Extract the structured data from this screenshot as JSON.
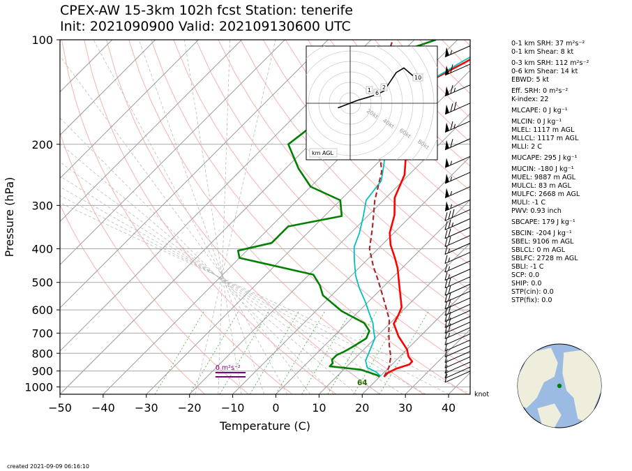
{
  "title_line1": "CPEX-AW 15-3km  102h fcst  Station: tenerife",
  "title_line2": "Init: 2021090900  Valid: 2021091306 00 UTC",
  "xlabel": "Temperature (C)",
  "ylabel": "Pressure (hPa)",
  "created": "created 2021-09-09 06:16:10",
  "wind_unit_label": "knot",
  "hodograph": {
    "box_label": "km AGL",
    "ring_labels": [
      "20kt",
      "40kt",
      "60kt",
      "80kt"
    ],
    "height_markers": [
      "1",
      "2",
      "6",
      "10"
    ],
    "trace_kt": [
      [
        -8,
        -3
      ],
      [
        5,
        2
      ],
      [
        12,
        4
      ],
      [
        18,
        6
      ],
      [
        22,
        8
      ],
      [
        26,
        14
      ],
      [
        30,
        20
      ],
      [
        35,
        23
      ],
      [
        42,
        17
      ]
    ]
  },
  "srh_annotation": "0 m²s⁻²",
  "lfc_annotation": "64",
  "parameters": [
    "0-1 km SRH: 37 m²s⁻²",
    "0-1 km Shear: 8 kt",
    "0-3 km SRH: 112 m²s⁻²",
    "0-6 km Shear: 14 kt",
    "EBWD: 5 kt",
    "Eff. SRH: 0 m²s⁻²",
    "K-index: 22",
    "MLCAPE: 0 J kg⁻¹",
    "MLCIN: 0 J kg⁻¹",
    "MLEL: 1117 m AGL",
    "MLLCL: 1117 m AGL",
    "MLLI: 2 C",
    "MUCAPE: 295 J kg⁻¹",
    "MUCIN: -180 J kg⁻¹",
    "MUEL: 9887 m AGL",
    "MULCL: 83 m AGL",
    "MULFC: 2668 m AGL",
    "MULI: -1 C",
    "PWV: 0.93 inch",
    "SBCAPE: 179 J kg⁻¹",
    "SBCIN: -204 J kg⁻¹",
    "SBEL: 9106 m AGL",
    "SBLCL: 0 m AGL",
    "SBLFC: 2728 m AGL",
    "SBLI: -1 C",
    "SCP: 0.0",
    "SHIP: 0.0",
    "STP(cin): 0.0",
    "STP(fix): 0.0"
  ],
  "colors": {
    "temperature": "#ff0000",
    "dewpoint": "#008000",
    "virtual_temperature": "#00bfbf",
    "parcel": "#a52a2a",
    "srh_marker": "#800080",
    "dry_adiabat": "#f4a6a6",
    "moist_adiabat": "#bbbbbb",
    "mixing_ratio": "#5cb85c",
    "globe_ocean": "#9bbbe3",
    "globe_land": "#efeedd",
    "station_marker": "#008000"
  },
  "chart_data": {
    "type": "line",
    "title": "CPEX-AW 15-3km  102h fcst  Station: tenerife",
    "xlabel": "Temperature (C)",
    "ylabel": "Pressure (hPa)",
    "xlim": [
      -50,
      45
    ],
    "ylim": [
      1050,
      100
    ],
    "y_scale": "log",
    "x_ticks": [
      -50,
      -40,
      -30,
      -20,
      -10,
      0,
      10,
      20,
      30,
      40
    ],
    "y_ticks": [
      100,
      200,
      300,
      400,
      500,
      600,
      700,
      800,
      900,
      1000
    ],
    "grid": true,
    "series": [
      {
        "key": "temperature",
        "points": [
          [
            21,
            935
          ],
          [
            21,
            910
          ],
          [
            22,
            885
          ],
          [
            24,
            862
          ],
          [
            24,
            845
          ],
          [
            22,
            818
          ],
          [
            20,
            780
          ],
          [
            15,
            715
          ],
          [
            11,
            658
          ],
          [
            10,
            620
          ],
          [
            9,
            590
          ],
          [
            7,
            560
          ],
          [
            3,
            505
          ],
          [
            -1,
            455
          ],
          [
            -4,
            425
          ],
          [
            -8,
            390
          ],
          [
            -11,
            360
          ],
          [
            -14,
            320
          ],
          [
            -18,
            285
          ],
          [
            -21,
            245
          ],
          [
            -26,
            210
          ],
          [
            -30,
            185
          ],
          [
            -34,
            162
          ],
          [
            -37,
            150
          ],
          [
            -37,
            132
          ],
          [
            -33,
            116
          ],
          [
            -29,
            100
          ]
        ]
      },
      {
        "key": "dewpoint",
        "points": [
          [
            20,
            935
          ],
          [
            19,
            925
          ],
          [
            14,
            892
          ],
          [
            6,
            872
          ],
          [
            6,
            855
          ],
          [
            5,
            835
          ],
          [
            5,
            810
          ],
          [
            6,
            790
          ],
          [
            7,
            760
          ],
          [
            8,
            725
          ],
          [
            7,
            690
          ],
          [
            4,
            655
          ],
          [
            -4,
            605
          ],
          [
            -12,
            545
          ],
          [
            -15,
            510
          ],
          [
            -19,
            475
          ],
          [
            -40,
            425
          ],
          [
            -42,
            405
          ],
          [
            -36,
            385
          ],
          [
            -36,
            345
          ],
          [
            -26,
            322
          ],
          [
            -30,
            290
          ],
          [
            -40,
            265
          ],
          [
            -47,
            235
          ],
          [
            -55,
            200
          ],
          [
            -53,
            165
          ],
          [
            -54,
            142
          ],
          [
            -54,
            122
          ],
          [
            -49,
            106
          ],
          [
            -45,
            100
          ]
        ]
      },
      {
        "key": "virtual_temperature",
        "points": [
          [
            20,
            930
          ],
          [
            18,
            905
          ],
          [
            15,
            880
          ],
          [
            13,
            840
          ],
          [
            12,
            800
          ],
          [
            11,
            762
          ],
          [
            10,
            725
          ],
          [
            8,
            690
          ],
          [
            6,
            655
          ],
          [
            3,
            615
          ],
          [
            -1,
            565
          ],
          [
            -5,
            522
          ],
          [
            -9,
            478
          ],
          [
            -13,
            430
          ],
          [
            -16,
            395
          ],
          [
            -18,
            360
          ],
          [
            -21,
            322
          ],
          [
            -24,
            290
          ],
          [
            -25,
            255
          ],
          [
            -28,
            230
          ],
          [
            -34,
            190
          ],
          [
            -37,
            160
          ],
          [
            -37,
            150
          ],
          [
            -37,
            132
          ],
          [
            -34,
            116
          ],
          [
            -30,
            100
          ]
        ]
      },
      {
        "key": "parcel",
        "points": [
          [
            21,
            935
          ],
          [
            20,
            880
          ],
          [
            18,
            820
          ],
          [
            15,
            760
          ],
          [
            12,
            700
          ],
          [
            9,
            640
          ],
          [
            5,
            585
          ],
          [
            1,
            535
          ],
          [
            -3,
            490
          ],
          [
            -7,
            450
          ],
          [
            -12,
            400
          ],
          [
            -16,
            350
          ],
          [
            -22,
            290
          ],
          [
            -27,
            240
          ],
          [
            -34,
            200
          ],
          [
            -41,
            167
          ],
          [
            -48,
            135
          ],
          [
            -55,
            100
          ]
        ]
      }
    ],
    "wind_barbs": [
      {
        "p": 935,
        "speed_kt": 10
      },
      {
        "p": 910,
        "speed_kt": 10
      },
      {
        "p": 880,
        "speed_kt": 10
      },
      {
        "p": 850,
        "speed_kt": 10
      },
      {
        "p": 820,
        "speed_kt": 10
      },
      {
        "p": 790,
        "speed_kt": 10
      },
      {
        "p": 760,
        "speed_kt": 10
      },
      {
        "p": 730,
        "speed_kt": 10
      },
      {
        "p": 700,
        "speed_kt": 15
      },
      {
        "p": 675,
        "speed_kt": 20
      },
      {
        "p": 650,
        "speed_kt": 20
      },
      {
        "p": 625,
        "speed_kt": 20
      },
      {
        "p": 600,
        "speed_kt": 20
      },
      {
        "p": 575,
        "speed_kt": 20
      },
      {
        "p": 550,
        "speed_kt": 20
      },
      {
        "p": 525,
        "speed_kt": 20
      },
      {
        "p": 500,
        "speed_kt": 20
      },
      {
        "p": 475,
        "speed_kt": 15
      },
      {
        "p": 450,
        "speed_kt": 15
      },
      {
        "p": 425,
        "speed_kt": 15
      },
      {
        "p": 400,
        "speed_kt": 15
      },
      {
        "p": 380,
        "speed_kt": 20
      },
      {
        "p": 360,
        "speed_kt": 20
      },
      {
        "p": 340,
        "speed_kt": 25
      },
      {
        "p": 320,
        "speed_kt": 30
      },
      {
        "p": 300,
        "speed_kt": 55
      },
      {
        "p": 275,
        "speed_kt": 55
      },
      {
        "p": 250,
        "speed_kt": 55
      },
      {
        "p": 225,
        "speed_kt": 55
      },
      {
        "p": 200,
        "speed_kt": 60
      },
      {
        "p": 178,
        "speed_kt": 65
      },
      {
        "p": 158,
        "speed_kt": 70
      },
      {
        "p": 140,
        "speed_kt": 65
      },
      {
        "p": 122,
        "speed_kt": 60
      },
      {
        "p": 108,
        "speed_kt": 55
      }
    ]
  }
}
